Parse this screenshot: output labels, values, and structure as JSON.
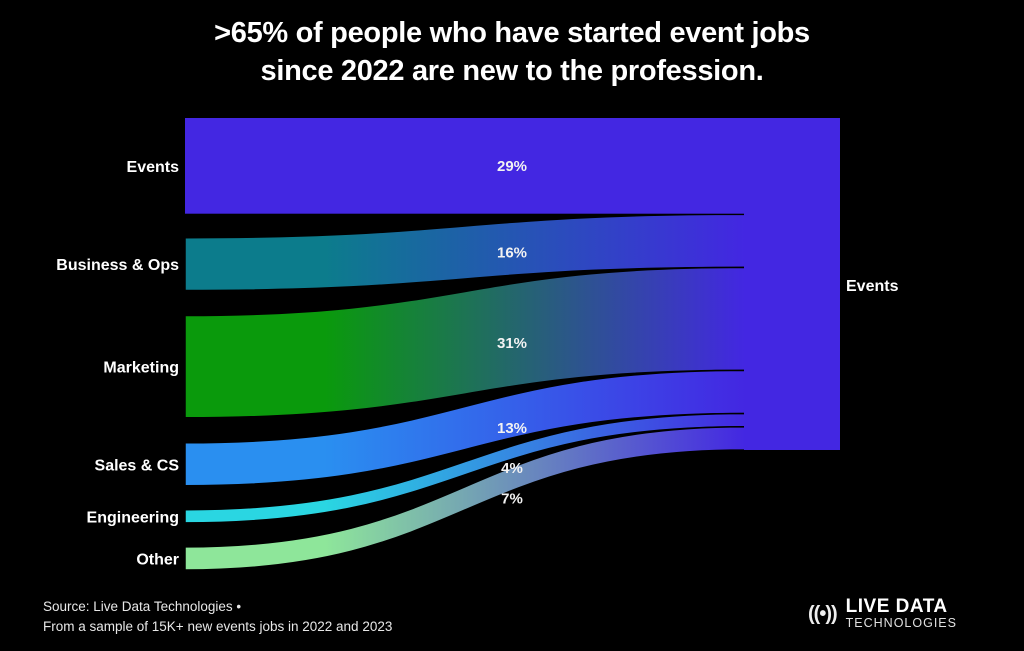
{
  "title": {
    "line1": ">65% of people who have started event jobs",
    "line2": "since 2022 are new to the profession."
  },
  "chart_data": {
    "type": "sankey",
    "title": ">65% of people who have started event jobs since 2022 are new to the profession.",
    "target": {
      "name": "Events",
      "color": "#4327e2"
    },
    "sources": [
      {
        "name": "Events",
        "value": 29,
        "label": "29%",
        "color": "#4327e2"
      },
      {
        "name": "Business & Ops",
        "value": 16,
        "label": "16%",
        "color": "#0c7c8c"
      },
      {
        "name": "Marketing",
        "value": 31,
        "label": "31%",
        "color": "#0a9a0c"
      },
      {
        "name": "Sales & CS",
        "value": 13,
        "label": "13%",
        "color": "#2a8ff0"
      },
      {
        "name": "Engineering",
        "value": 4,
        "label": "4%",
        "color": "#2ad6e2"
      },
      {
        "name": "Other",
        "value": 7,
        "label": "7%",
        "color": "#8ee69a"
      }
    ]
  },
  "footer": {
    "source": "Source: Live Data Technologies •",
    "note": "From a sample of 15K+ new events jobs in 2022 and 2023"
  },
  "logo": {
    "icon": "broadcast-icon",
    "glyph": "((•))",
    "main": "LIVE DATA",
    "sub": "TECHNOLOGIES"
  }
}
